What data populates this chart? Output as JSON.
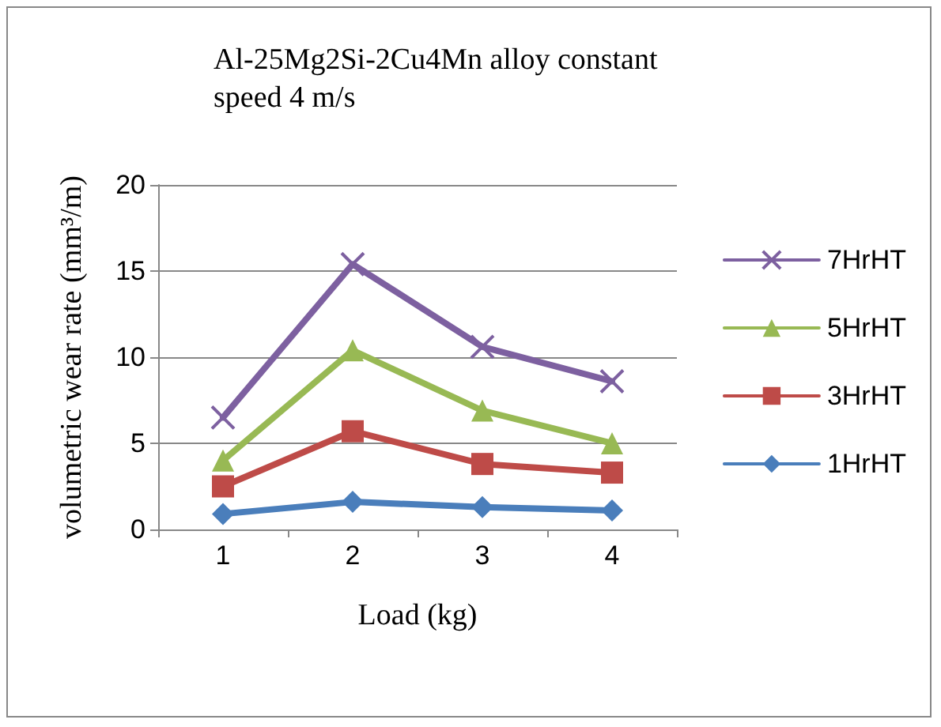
{
  "chart_data": {
    "type": "line",
    "title": "Al-25Mg2Si-2Cu4Mn alloy constant speed 4 m/s",
    "xlabel": "Load (kg)",
    "ylabel": "volumetric wear rate (mm³/m)",
    "categories": [
      "1",
      "2",
      "3",
      "4"
    ],
    "series": [
      {
        "name": "1HrHT",
        "color": "#4a7ebb",
        "marker": "diamond",
        "values": [
          0.9,
          1.6,
          1.3,
          1.1
        ]
      },
      {
        "name": "3HrHT",
        "color": "#be4b48",
        "marker": "square",
        "values": [
          2.5,
          5.7,
          3.8,
          3.3
        ]
      },
      {
        "name": "5HrHT",
        "color": "#98b954",
        "marker": "triangle",
        "values": [
          4.0,
          10.4,
          6.9,
          5.0
        ]
      },
      {
        "name": "7HrHT",
        "color": "#7d60a0",
        "marker": "cross",
        "values": [
          6.5,
          15.4,
          10.6,
          8.6
        ]
      }
    ],
    "ylim": [
      0,
      20
    ],
    "yticks": [
      0,
      5,
      10,
      15,
      20
    ],
    "grid": "y",
    "legend": "right",
    "line_style": "solid"
  }
}
